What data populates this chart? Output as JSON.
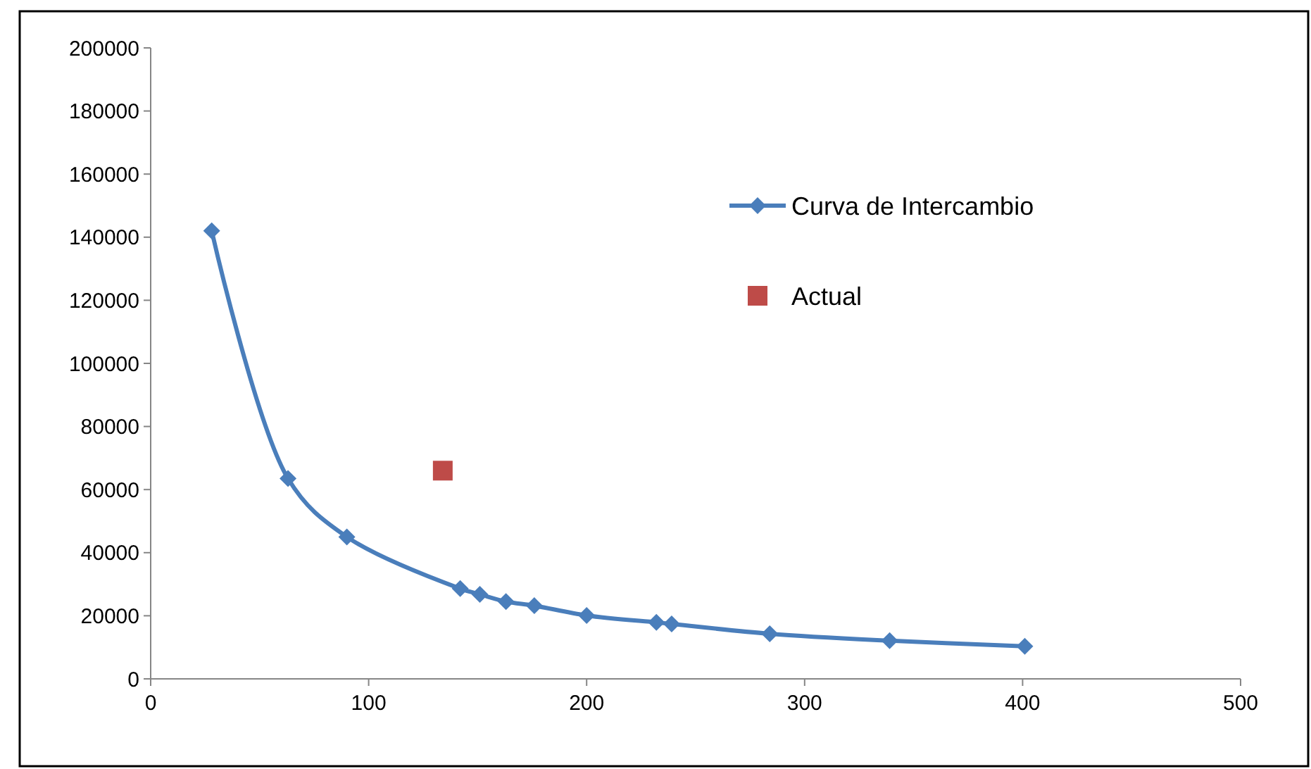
{
  "chart_data": {
    "type": "line",
    "xlim": [
      0,
      500
    ],
    "xticks": [
      0,
      100,
      200,
      300,
      400,
      500
    ],
    "ylim": [
      0,
      200000
    ],
    "yticks": [
      0,
      20000,
      40000,
      60000,
      80000,
      100000,
      120000,
      140000,
      160000,
      180000,
      200000
    ],
    "grid": false,
    "legend": "right",
    "series": [
      {
        "name": "Curva de Intercambio",
        "color": "#4a7ebb",
        "marker": "diamond",
        "x": [
          28,
          63,
          90,
          142,
          151,
          163,
          176,
          200,
          232,
          239,
          284,
          339,
          401
        ],
        "values": [
          142000,
          63500,
          45000,
          28600,
          26800,
          24500,
          23200,
          20100,
          17900,
          17400,
          14300,
          12100,
          10300
        ]
      },
      {
        "name": "Actual",
        "type": "scatter",
        "color": "#be4b48",
        "marker": "square",
        "x": [
          134
        ],
        "values": [
          66000
        ]
      }
    ]
  }
}
